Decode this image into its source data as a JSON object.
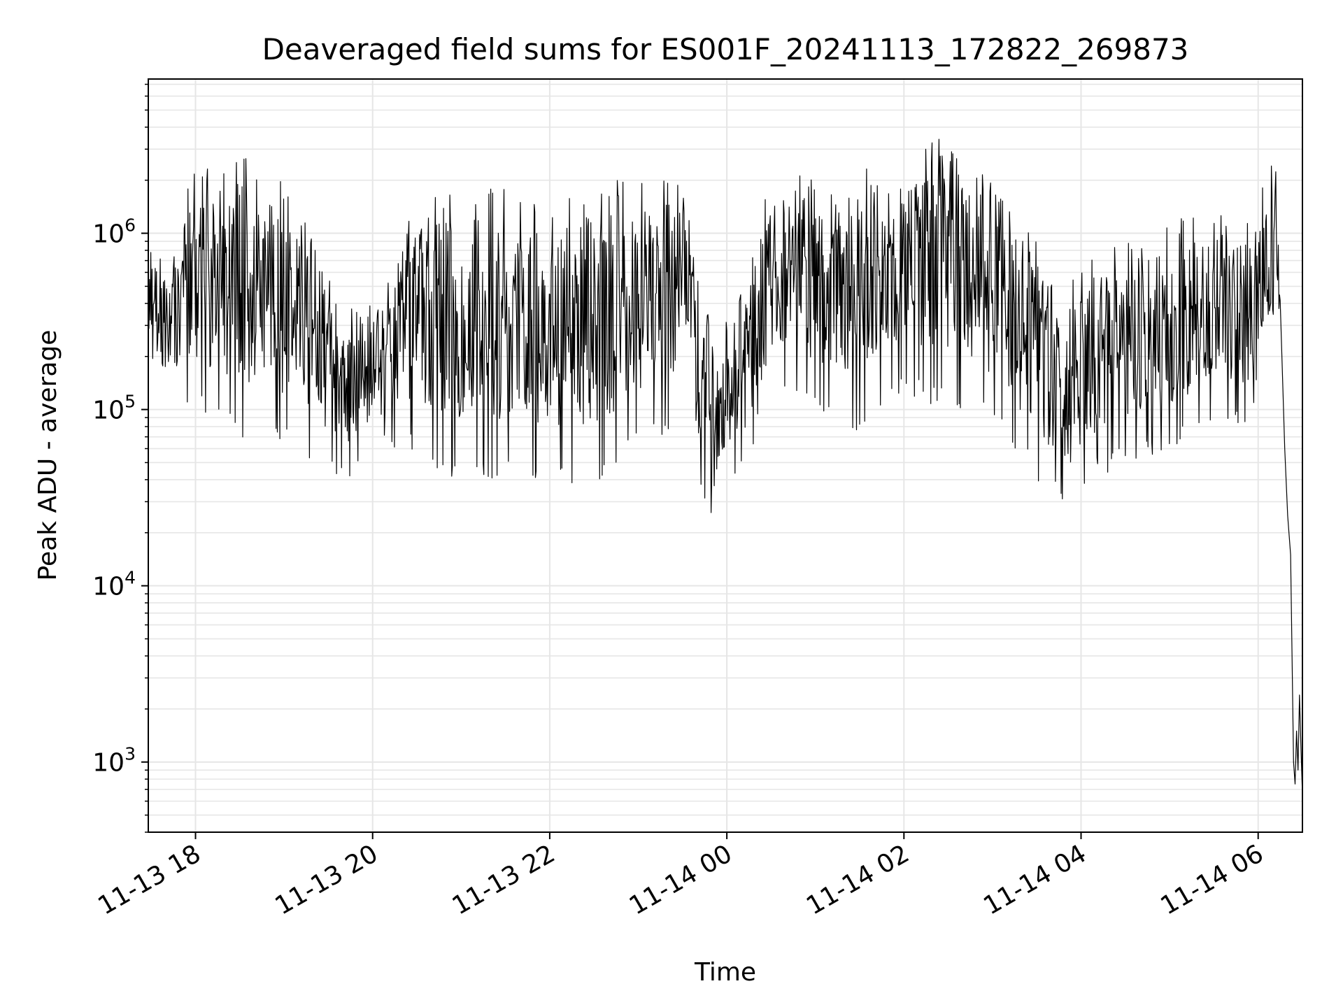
{
  "chart_data": {
    "type": "line",
    "title": "Deaveraged field sums for ES001F_20241113_172822_269873",
    "xlabel": "Time",
    "ylabel": "Peak ADU - average",
    "x_type": "datetime",
    "x_range": [
      "2024-11-13T17:28",
      "2024-11-14T06:30"
    ],
    "y_scale": "log",
    "y_range": [
      400,
      7500000
    ],
    "grid": true,
    "legend": "none",
    "x_ticks": [
      {
        "t": "2024-11-13T18:00",
        "label": "11-13 18"
      },
      {
        "t": "2024-11-13T20:00",
        "label": "11-13 20"
      },
      {
        "t": "2024-11-13T22:00",
        "label": "11-13 22"
      },
      {
        "t": "2024-11-14T00:00",
        "label": "11-14 00"
      },
      {
        "t": "2024-11-14T02:00",
        "label": "11-14 02"
      },
      {
        "t": "2024-11-14T04:00",
        "label": "11-14 04"
      },
      {
        "t": "2024-11-14T06:00",
        "label": "11-14 06"
      }
    ],
    "y_ticks": [
      {
        "value": 1000,
        "base": "10",
        "exp": "3"
      },
      {
        "value": 10000,
        "base": "10",
        "exp": "4"
      },
      {
        "value": 100000,
        "base": "10",
        "exp": "5"
      },
      {
        "value": 1000000,
        "base": "10",
        "exp": "6"
      }
    ],
    "series": [
      {
        "color": "#000000",
        "envelope": [
          {
            "t": "2024-11-13T17:28",
            "lo": 200000,
            "hi": 800000
          },
          {
            "t": "2024-11-13T17:40",
            "lo": 90000,
            "hi": 700000
          },
          {
            "t": "2024-11-13T18:00",
            "lo": 100000,
            "hi": 2500000
          },
          {
            "t": "2024-11-13T18:30",
            "lo": 70000,
            "hi": 2800000
          },
          {
            "t": "2024-11-13T19:00",
            "lo": 60000,
            "hi": 2000000
          },
          {
            "t": "2024-11-13T19:30",
            "lo": 45000,
            "hi": 700000
          },
          {
            "t": "2024-11-13T19:45",
            "lo": 40000,
            "hi": 450000
          },
          {
            "t": "2024-11-13T20:00",
            "lo": 60000,
            "hi": 450000
          },
          {
            "t": "2024-11-13T20:30",
            "lo": 55000,
            "hi": 1500000
          },
          {
            "t": "2024-11-13T21:00",
            "lo": 35000,
            "hi": 1800000
          },
          {
            "t": "2024-11-13T21:30",
            "lo": 40000,
            "hi": 1800000
          },
          {
            "t": "2024-11-13T22:00",
            "lo": 40000,
            "hi": 1500000
          },
          {
            "t": "2024-11-13T22:30",
            "lo": 35000,
            "hi": 2000000
          },
          {
            "t": "2024-11-13T23:00",
            "lo": 60000,
            "hi": 2000000
          },
          {
            "t": "2024-11-13T23:30",
            "lo": 70000,
            "hi": 2200000
          },
          {
            "t": "2024-11-13T23:50",
            "lo": 20000,
            "hi": 300000
          },
          {
            "t": "2024-11-14T00:10",
            "lo": 40000,
            "hi": 600000
          },
          {
            "t": "2024-11-14T00:30",
            "lo": 120000,
            "hi": 2000000
          },
          {
            "t": "2024-11-14T01:00",
            "lo": 100000,
            "hi": 2500000
          },
          {
            "t": "2024-11-14T01:30",
            "lo": 70000,
            "hi": 2800000
          },
          {
            "t": "2024-11-14T02:00",
            "lo": 120000,
            "hi": 2500000
          },
          {
            "t": "2024-11-14T02:30",
            "lo": 100000,
            "hi": 3800000
          },
          {
            "t": "2024-11-14T03:00",
            "lo": 80000,
            "hi": 2000000
          },
          {
            "t": "2024-11-14T03:30",
            "lo": 40000,
            "hi": 1000000
          },
          {
            "t": "2024-11-14T03:50",
            "lo": 25000,
            "hi": 500000
          },
          {
            "t": "2024-11-14T04:10",
            "lo": 40000,
            "hi": 800000
          },
          {
            "t": "2024-11-14T04:30",
            "lo": 50000,
            "hi": 900000
          },
          {
            "t": "2024-11-14T05:00",
            "lo": 55000,
            "hi": 1200000
          },
          {
            "t": "2024-11-14T05:30",
            "lo": 90000,
            "hi": 1300000
          },
          {
            "t": "2024-11-14T05:55",
            "lo": 80000,
            "hi": 1200000
          },
          {
            "t": "2024-11-14T06:05",
            "lo": 200000,
            "hi": 3000000
          },
          {
            "t": "2024-11-14T06:15",
            "lo": 150000,
            "hi": 2000000
          }
        ],
        "tail": [
          {
            "t": "2024-11-14T06:18",
            "y": 60000
          },
          {
            "t": "2024-11-14T06:20",
            "y": 25000
          },
          {
            "t": "2024-11-14T06:22",
            "y": 15000
          },
          {
            "t": "2024-11-14T06:24",
            "y": 1000
          },
          {
            "t": "2024-11-14T06:25",
            "y": 750
          },
          {
            "t": "2024-11-14T06:26",
            "y": 1500
          },
          {
            "t": "2024-11-14T06:27",
            "y": 900
          },
          {
            "t": "2024-11-14T06:28",
            "y": 2400
          },
          {
            "t": "2024-11-14T06:29",
            "y": 1200
          },
          {
            "t": "2024-11-14T06:30",
            "y": 650
          }
        ]
      }
    ]
  }
}
